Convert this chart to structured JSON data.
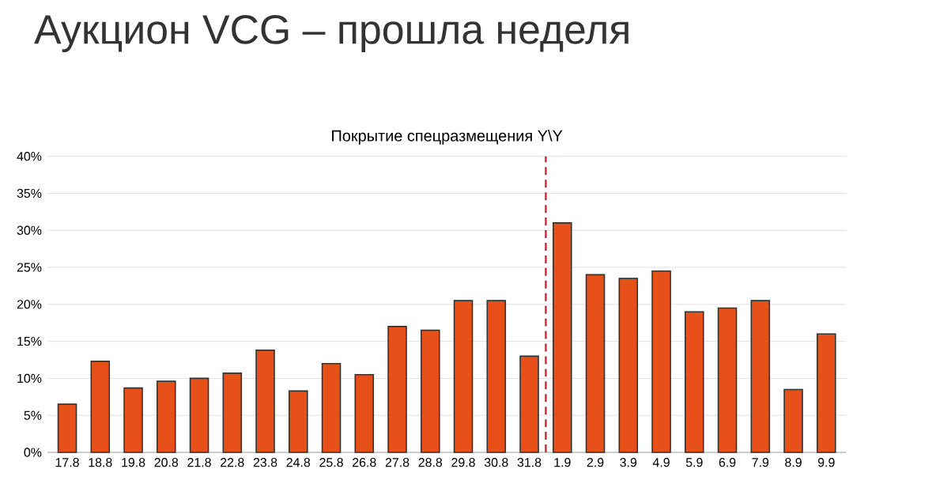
{
  "chart_data": {
    "type": "bar",
    "title": "Аукцион VCG – прошла неделя",
    "subtitle": "Покрытие спецразмещения Y\\Y",
    "categories": [
      "17.8",
      "18.8",
      "19.8",
      "20.8",
      "21.8",
      "22.8",
      "23.8",
      "24.8",
      "25.8",
      "26.8",
      "27.8",
      "28.8",
      "29.8",
      "30.8",
      "31.8",
      "1.9",
      "2.9",
      "3.9",
      "4.9",
      "5.9",
      "6.9",
      "7.9",
      "8.9",
      "9.9"
    ],
    "values": [
      6.5,
      12.3,
      8.7,
      9.6,
      10,
      10.7,
      13.8,
      8.3,
      12,
      10.5,
      17,
      16.5,
      20.5,
      20.5,
      13,
      31,
      24,
      23.5,
      24.5,
      19,
      19.5,
      20.5,
      8.5,
      16
    ],
    "color": "#e8501a",
    "ylim": [
      0,
      40
    ],
    "yticks": [
      {
        "value": 0,
        "label": "0%"
      },
      {
        "value": 5,
        "label": "5%"
      },
      {
        "value": 10,
        "label": "10%"
      },
      {
        "value": 15,
        "label": "15%"
      },
      {
        "value": 20,
        "label": "20%"
      },
      {
        "value": 25,
        "label": "25%"
      },
      {
        "value": 30,
        "label": "30%"
      },
      {
        "value": 35,
        "label": "35%"
      },
      {
        "value": 40,
        "label": "40%"
      }
    ],
    "grid": "y",
    "ref_lines": [
      {
        "axis": "x",
        "value": "1.9",
        "color": "#c8283c",
        "line_style": "dashed"
      }
    ]
  }
}
